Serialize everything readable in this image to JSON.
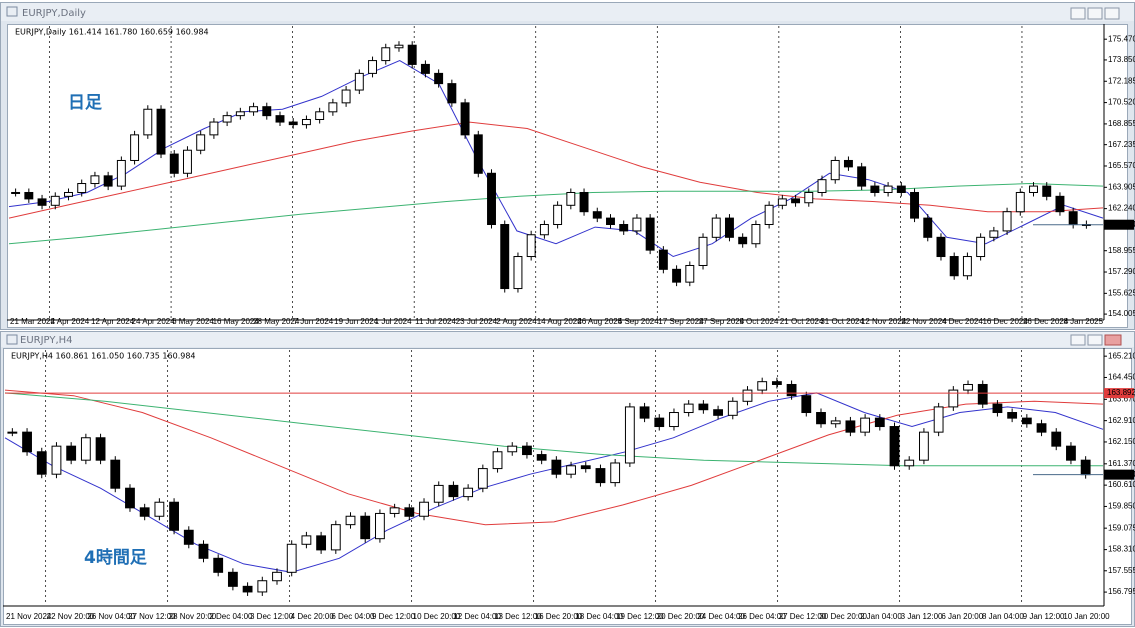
{
  "windows": [
    {
      "title": "EURJPY,Daily"
    },
    {
      "title": "EURJPY,H4"
    }
  ],
  "chart_data": [
    {
      "type": "candlestick",
      "info": "EURJPY,Daily  161.414 161.780 160.659 160.984",
      "annotation": "日足",
      "values": [
        163.5,
        163.0,
        162.5,
        163.2,
        163.5,
        164.2,
        164.8,
        164.0,
        166.0,
        168.0,
        170.0,
        166.5,
        165.0,
        166.8,
        168.0,
        169.0,
        169.5,
        169.8,
        170.2,
        169.5,
        169.0,
        168.8,
        169.2,
        169.8,
        170.5,
        171.5,
        172.8,
        173.8,
        174.8,
        175.0,
        173.5,
        172.8,
        172.0,
        170.5,
        168.0,
        165.0,
        161.0,
        156.0,
        158.5,
        160.2,
        161.0,
        162.5,
        163.5,
        162.0,
        161.5,
        161.0,
        160.5,
        161.5,
        159.0,
        157.5,
        156.5,
        157.8,
        160.0,
        161.5,
        160.0,
        159.5,
        161.0,
        162.5,
        163.0,
        162.7,
        163.5,
        164.5,
        166.0,
        165.5,
        164.0,
        163.5,
        164.0,
        163.5,
        161.5,
        160.0,
        158.5,
        157.0,
        158.5,
        160.0,
        160.5,
        162.0,
        163.5,
        164.0,
        163.2,
        162.0,
        161.0,
        160.984
      ],
      "ma": [
        {
          "color": "#3333cc",
          "values": [
            162.4,
            162.8,
            163.5,
            165.0,
            167.0,
            168.5,
            169.8,
            170.0,
            171.0,
            172.5,
            173.8,
            172.0,
            166.0,
            160.5,
            159.5,
            160.8,
            160.5,
            158.5,
            159.5,
            161.5,
            163.0,
            165.0,
            164.5,
            163.5,
            160.0,
            159.5,
            161.0,
            162.5,
            161.5
          ]
        },
        {
          "color": "#e03c3c",
          "values": [
            161.5,
            162.5,
            163.5,
            164.5,
            165.5,
            166.5,
            167.5,
            168.3,
            169.0,
            168.5,
            167.0,
            165.5,
            164.3,
            163.5,
            163.0,
            162.8,
            162.5,
            162.0,
            162.0,
            162.3
          ]
        },
        {
          "color": "#3cb371",
          "values": [
            159.5,
            160.0,
            160.6,
            161.2,
            161.8,
            162.3,
            162.8,
            163.2,
            163.5,
            163.6,
            163.6,
            163.6,
            163.7,
            164.0,
            164.2,
            164.0
          ]
        }
      ],
      "ylim": [
        153.7,
        176.5
      ],
      "yticks": [
        {
          "value": 175.47,
          "label": "175.470"
        },
        {
          "value": 173.85,
          "label": "173.850"
        },
        172.185,
        {
          "value": 170.52,
          "label": "170.520"
        },
        168.855,
        167.235,
        {
          "value": 165.57,
          "label": "165.570"
        },
        163.905,
        {
          "value": 162.24,
          "label": "162.240"
        },
        158.955,
        {
          "value": 157.29,
          "label": "157.290"
        },
        155.625,
        154.005
      ],
      "current_price": 160.984,
      "x_labels": [
        "21 Mar 2024",
        "2 Apr 2024",
        "12 Apr 2024",
        "24 Apr 2024",
        "6 May 2024",
        "16 May 2024",
        "28 May 2024",
        "7 Jun 2024",
        "19 Jun 2024",
        "1 Jul 2024",
        "11 Jul 2024",
        "23 Jul 2024",
        "2 Aug 2024",
        "14 Aug 2024",
        "26 Aug 2024",
        "5 Sep 2024",
        "17 Sep 2024",
        "27 Sep 2024",
        "9 Oct 2024",
        "21 Oct 2024",
        "31 Oct 2024",
        "12 Nov 2024",
        "22 Nov 2024",
        "4 Dec 2024",
        "16 Dec 2024",
        "26 Dec 2024",
        "8 Jan 2025"
      ]
    },
    {
      "type": "candlestick",
      "info": "EURJPY,H4  160.861 161.050 160.735 160.984",
      "annotation": "4時間足",
      "values": [
        162.5,
        161.8,
        161.0,
        162.0,
        161.5,
        162.3,
        161.5,
        160.5,
        159.8,
        159.5,
        160.0,
        159.0,
        158.5,
        158.0,
        157.5,
        157.0,
        156.8,
        157.2,
        157.5,
        158.5,
        158.8,
        158.3,
        159.2,
        159.5,
        158.7,
        159.6,
        159.8,
        159.5,
        160.0,
        160.6,
        160.2,
        160.5,
        161.2,
        161.8,
        162.0,
        161.7,
        161.5,
        161.0,
        161.3,
        161.2,
        160.7,
        161.4,
        163.4,
        163.0,
        162.7,
        163.2,
        163.5,
        163.3,
        163.1,
        163.6,
        164.0,
        164.3,
        164.2,
        163.8,
        163.2,
        162.8,
        162.9,
        162.5,
        163.0,
        162.7,
        161.3,
        161.5,
        162.5,
        163.4,
        164.0,
        164.2,
        163.5,
        163.2,
        163.0,
        162.8,
        162.5,
        162.0,
        161.5,
        160.984
      ],
      "ma": [
        {
          "color": "#3333cc",
          "values": [
            162.3,
            161.3,
            160.5,
            159.5,
            158.5,
            157.8,
            157.5,
            158.0,
            159.0,
            159.8,
            160.5,
            161.0,
            161.4,
            161.8,
            162.3,
            163.0,
            163.6,
            163.9,
            163.2,
            162.7,
            163.2,
            163.4,
            163.2,
            162.6
          ]
        },
        {
          "color": "#e03c3c",
          "values": [
            164.0,
            163.8,
            163.2,
            162.3,
            161.3,
            160.3,
            159.6,
            159.2,
            159.3,
            159.9,
            160.6,
            161.5,
            162.4,
            163.1,
            163.5,
            163.6,
            163.5
          ]
        },
        {
          "color": "#3cb371",
          "values": [
            163.9,
            163.6,
            163.2,
            162.8,
            162.4,
            162.0,
            161.7,
            161.5,
            161.4,
            161.3,
            161.3,
            161.3
          ]
        }
      ],
      "ylim": [
        156.37,
        165.43
      ],
      "yticks": [
        {
          "value": 165.21,
          "label": "165.210"
        },
        {
          "value": 164.45,
          "label": "164.450"
        },
        {
          "value": 163.67,
          "label": "163.670"
        },
        {
          "value": 162.91,
          "label": "162.910"
        },
        {
          "value": 162.15,
          "label": "162.150"
        },
        {
          "value": 161.37,
          "label": "161.370"
        },
        {
          "value": 160.61,
          "label": "160.610"
        },
        {
          "value": 159.85,
          "label": "159.850"
        },
        159.075,
        {
          "value": 158.31,
          "label": "158.310"
        },
        157.555,
        156.795
      ],
      "current_price": 160.984,
      "marker_price": 163.892,
      "marker_color": "#e03c3c",
      "x_labels": [
        "21 Nov 2024",
        "22 Nov 20:00",
        "26 Nov 04:00",
        "27 Nov 12:00",
        "28 Nov 20:00",
        "2 Dec 04:00",
        "3 Dec 12:00",
        "4 Dec 20:00",
        "6 Dec 04:00",
        "9 Dec 12:00",
        "10 Dec 20:00",
        "12 Dec 04:00",
        "13 Dec 12:00",
        "16 Dec 20:00",
        "18 Dec 04:00",
        "19 Dec 12:00",
        "20 Dec 20:00",
        "24 Dec 04:00",
        "26 Dec 04:00",
        "27 Dec 12:00",
        "30 Dec 20:00",
        "2 Jan 04:00",
        "3 Jan 12:00",
        "6 Jan 20:00",
        "8 Jan 04:00",
        "9 Jan 12:00",
        "10 Jan 20:00"
      ]
    }
  ]
}
